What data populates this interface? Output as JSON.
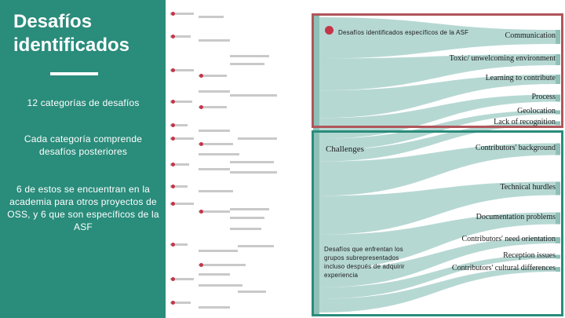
{
  "slide": {
    "title": "Desafíos identificados",
    "text1": "12 categorías de desafíos",
    "text2": "Cada categoría comprende desafíos posteriores",
    "text3": "6 de estos se encuentran en la academia para otros proyectos de OSS, y 6 que son específicos de la ASF"
  },
  "sankey": {
    "source_label": "Challenges",
    "asf_note": "Desafíos identificados específicos de la ASF",
    "minority_note": "Desafíos que enfrentan los grupos subrepresentados incluso después de adquirir experiencia",
    "destinations": [
      "Communication",
      "Toxic/ unwelcoming environment",
      "Learning to contribute",
      "Process",
      "Geolocation",
      "Lack of recognition",
      "Contributors' background",
      "Technical hurdles",
      "Documentation problems",
      "Contributors' need orientation",
      "Reception issues",
      "Contributors' cultural differences"
    ]
  },
  "colors": {
    "sidebar": "#2a8c7b",
    "flow": "#a9d1cb",
    "asf_outline": "#b0565a",
    "oss_outline": "#2a8c7b",
    "badge": "#c4354a"
  }
}
